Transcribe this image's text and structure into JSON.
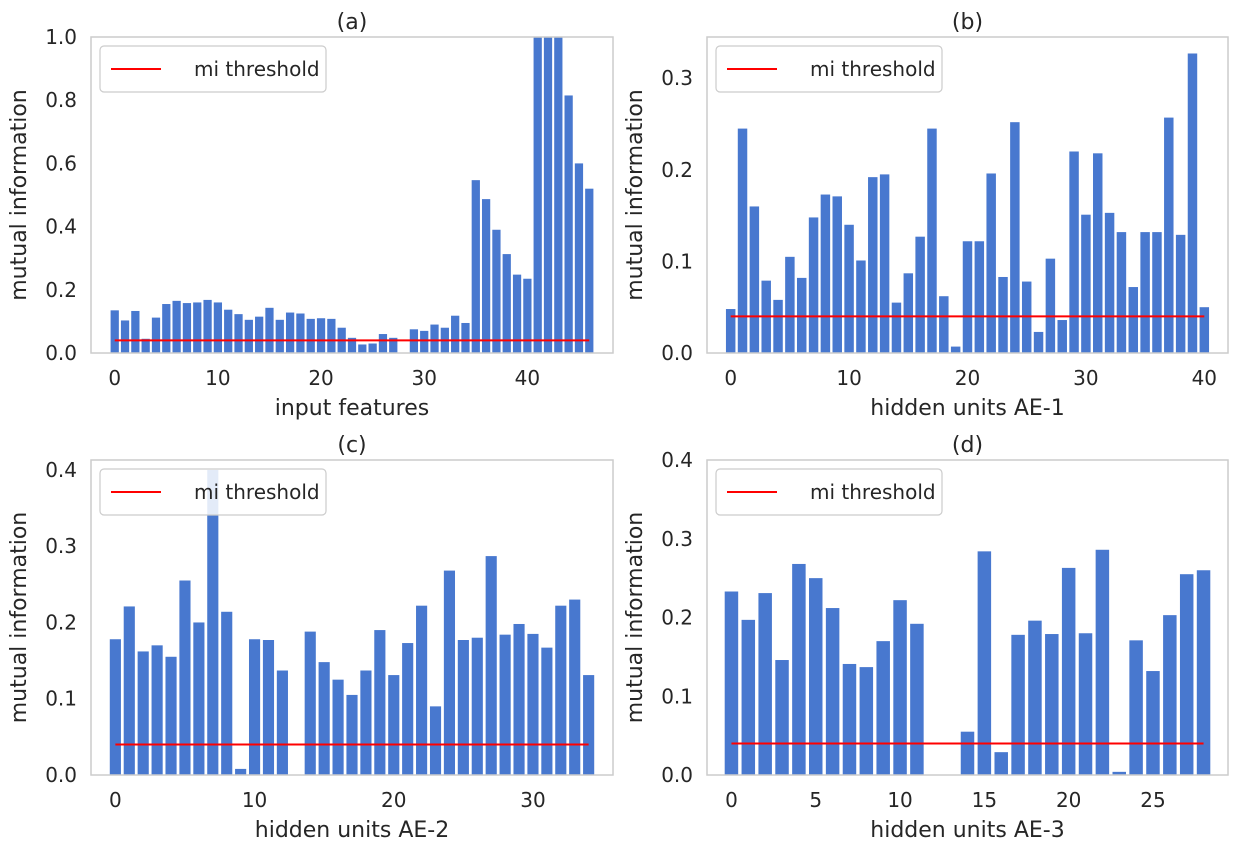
{
  "chart_data": [
    {
      "type": "bar",
      "title": "(a)",
      "xlabel": "input features",
      "ylabel": "mutual information",
      "xlim": [
        -2.3,
        48.3
      ],
      "ylim": [
        0,
        1.0
      ],
      "xticks": [
        0,
        10,
        20,
        30,
        40
      ],
      "yticks": [
        0.0,
        0.2,
        0.4,
        0.6,
        0.8,
        1.0
      ],
      "ytick_labels": [
        "0.0",
        "0.2",
        "0.4",
        "0.6",
        "0.8",
        "1.0"
      ],
      "values": [
        0.135,
        0.103,
        0.133,
        0.045,
        0.112,
        0.155,
        0.165,
        0.158,
        0.16,
        0.168,
        0.16,
        0.137,
        0.123,
        0.105,
        0.115,
        0.143,
        0.105,
        0.128,
        0.125,
        0.108,
        0.11,
        0.108,
        0.08,
        0.048,
        0.027,
        0.03,
        0.06,
        0.048,
        0.0,
        0.075,
        0.07,
        0.09,
        0.08,
        0.118,
        0.095,
        0.547,
        0.487,
        0.39,
        0.313,
        0.248,
        0.235,
        1.0,
        1.0,
        1.0,
        0.815,
        0.6,
        0.52
      ],
      "threshold": {
        "label": "mi threshold",
        "value": 0.04,
        "color": "#ff0000"
      },
      "bar_color": "#4878cf",
      "legend": "upper-left"
    },
    {
      "type": "bar",
      "title": "(b)",
      "xlabel": "hidden units AE-1",
      "ylabel": "mutual information",
      "xlim": [
        -2.0,
        42.0
      ],
      "ylim": [
        0,
        0.345
      ],
      "xticks": [
        0,
        10,
        20,
        30,
        40
      ],
      "yticks": [
        0.0,
        0.1,
        0.2,
        0.3
      ],
      "ytick_labels": [
        "0.0",
        "0.1",
        "0.2",
        "0.3"
      ],
      "values": [
        0.048,
        0.245,
        0.16,
        0.079,
        0.058,
        0.105,
        0.082,
        0.148,
        0.173,
        0.171,
        0.14,
        0.101,
        0.192,
        0.195,
        0.055,
        0.087,
        0.127,
        0.245,
        0.062,
        0.007,
        0.122,
        0.122,
        0.196,
        0.083,
        0.252,
        0.078,
        0.023,
        0.103,
        0.036,
        0.22,
        0.151,
        0.218,
        0.153,
        0.132,
        0.072,
        0.132,
        0.132,
        0.257,
        0.129,
        0.327,
        0.05
      ],
      "threshold": {
        "label": "mi threshold",
        "value": 0.04,
        "color": "#ff0000"
      },
      "bar_color": "#4878cf",
      "legend": "upper-left"
    },
    {
      "type": "bar",
      "title": "(c)",
      "xlabel": "hidden units AE-2",
      "ylabel": "mutual information",
      "xlim": [
        -1.75,
        35.75
      ],
      "ylim": [
        0,
        0.413
      ],
      "xticks": [
        0,
        10,
        20,
        30
      ],
      "yticks": [
        0.0,
        0.1,
        0.2,
        0.3,
        0.4
      ],
      "ytick_labels": [
        "0.0",
        "0.1",
        "0.2",
        "0.3",
        "0.4"
      ],
      "values": [
        0.178,
        0.221,
        0.162,
        0.17,
        0.155,
        0.255,
        0.2,
        0.4,
        0.214,
        0.008,
        0.178,
        0.177,
        0.137,
        0.0,
        0.188,
        0.148,
        0.125,
        0.105,
        0.137,
        0.19,
        0.131,
        0.173,
        0.222,
        0.09,
        0.268,
        0.177,
        0.18,
        0.287,
        0.184,
        0.198,
        0.185,
        0.167,
        0.222,
        0.23,
        0.131
      ],
      "threshold": {
        "label": "mi threshold",
        "value": 0.04,
        "color": "#ff0000"
      },
      "bar_color": "#4878cf",
      "legend": "upper-left"
    },
    {
      "type": "bar",
      "title": "(d)",
      "xlabel": "hidden units AE-3",
      "ylabel": "mutual information",
      "xlim": [
        -1.45,
        29.45
      ],
      "ylim": [
        0,
        0.4
      ],
      "xticks": [
        0,
        5,
        10,
        15,
        20,
        25
      ],
      "yticks": [
        0.0,
        0.1,
        0.2,
        0.3,
        0.4
      ],
      "ytick_labels": [
        "0.0",
        "0.1",
        "0.2",
        "0.3",
        "0.4"
      ],
      "values": [
        0.233,
        0.197,
        0.231,
        0.146,
        0.268,
        0.25,
        0.212,
        0.141,
        0.137,
        0.17,
        0.222,
        0.192,
        0.0,
        0.0,
        0.055,
        0.284,
        0.029,
        0.178,
        0.196,
        0.179,
        0.263,
        0.18,
        0.286,
        0.004,
        0.171,
        0.132,
        0.203,
        0.255,
        0.26
      ],
      "threshold": {
        "label": "mi threshold",
        "value": 0.04,
        "color": "#ff0000"
      },
      "bar_color": "#4878cf",
      "legend": "upper-left"
    }
  ]
}
